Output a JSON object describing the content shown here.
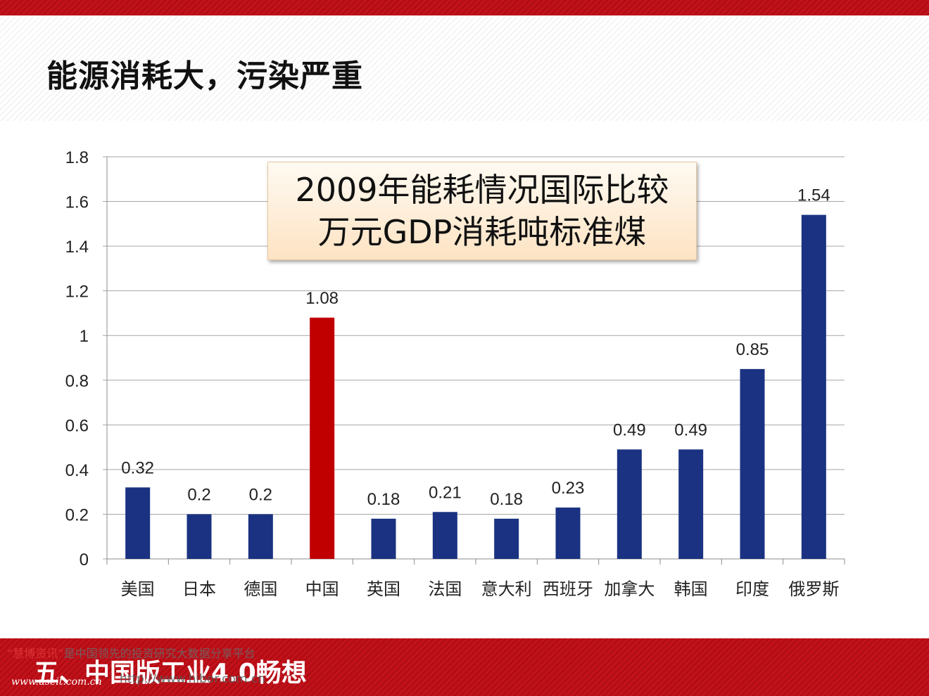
{
  "slide": {
    "title": "能源消耗大，污染严重",
    "callout_line1": "2009年能耗情况国际比较",
    "callout_line2": "万元GDP消耗吨标准煤",
    "section_title": "五、中国版工业4.0畅想",
    "watermark_brand": "“慧博资讯”",
    "watermark_text": "是中国领先的投资研究大数据分享平台",
    "watermark_url": "http://www.hibor.com.cn",
    "site_mark": "www.useit.com.cn"
  },
  "colors": {
    "bar_default": "#1a3281",
    "bar_highlight": "#c00000",
    "grid": "#a6a6a6",
    "accent_red": "#c3121b"
  },
  "chart_data": {
    "type": "bar",
    "categories": [
      "美国",
      "日本",
      "德国",
      "中国",
      "英国",
      "法国",
      "意大利",
      "西班牙",
      "加拿大",
      "韩国",
      "印度",
      "俄罗斯"
    ],
    "values": [
      0.32,
      0.2,
      0.2,
      1.08,
      0.18,
      0.21,
      0.18,
      0.23,
      0.49,
      0.49,
      0.85,
      1.54
    ],
    "value_labels": [
      "0.32",
      "0.2",
      "0.2",
      "1.08",
      "0.18",
      "0.21",
      "0.18",
      "0.23",
      "0.49",
      "0.49",
      "0.85",
      "1.54"
    ],
    "highlight_category": "中国",
    "ylim": [
      0,
      1.8
    ],
    "yticks": [
      0,
      0.2,
      0.4,
      0.6,
      0.8,
      1,
      1.2,
      1.4,
      1.6,
      1.8
    ],
    "ytick_labels": [
      "0",
      "0.2",
      "0.4",
      "0.6",
      "0.8",
      "1",
      "1.2",
      "1.4",
      "1.6",
      "1.8"
    ],
    "grid": true,
    "legend": "none"
  }
}
